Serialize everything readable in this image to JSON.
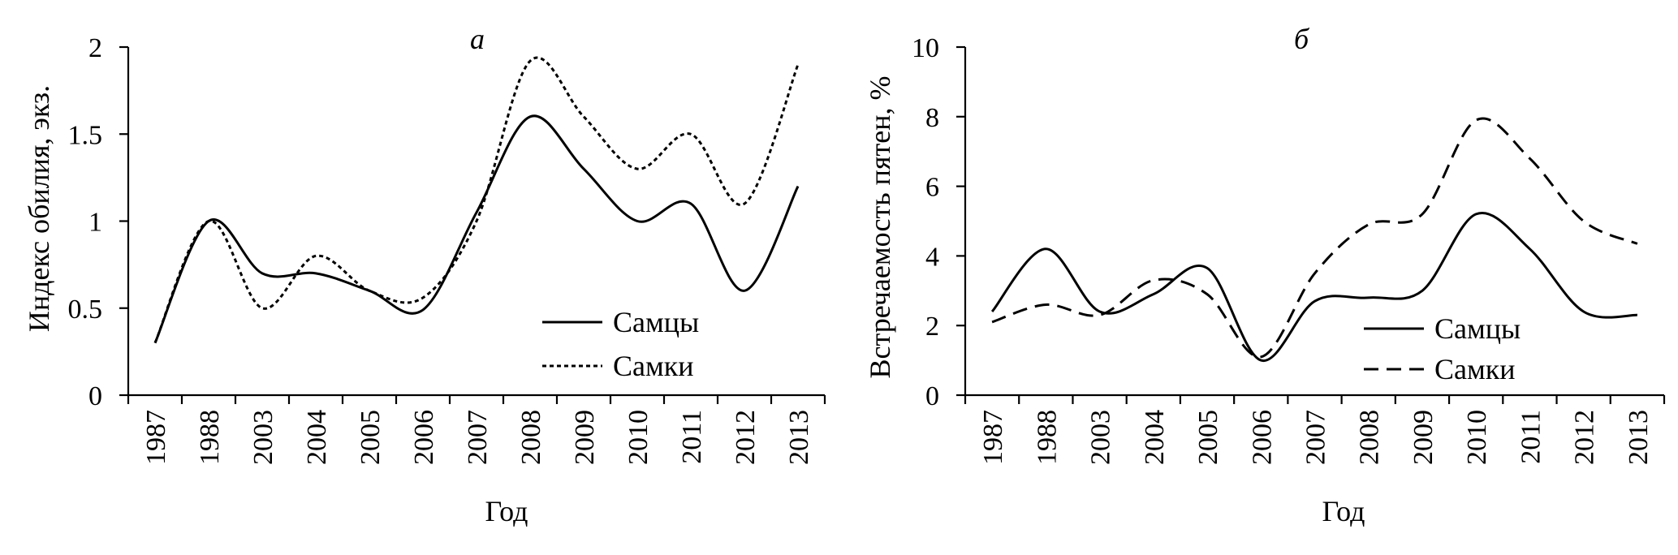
{
  "chart_data": [
    {
      "type": "line",
      "title": "а",
      "xlabel": "Год",
      "ylabel": "Индекс обилия, экз.",
      "categories": [
        "1987",
        "1988",
        "2003",
        "2004",
        "2005",
        "2006",
        "2007",
        "2008",
        "2009",
        "2010",
        "2011",
        "2012",
        "2013"
      ],
      "ylim": [
        0,
        2
      ],
      "yticks": [
        "0",
        "0.5",
        "1",
        "1.5",
        "2"
      ],
      "grid": false,
      "legend_position": "bottom-right",
      "series": [
        {
          "name": "Самцы",
          "style": "solid",
          "values": [
            0.3,
            1.0,
            0.7,
            0.7,
            0.6,
            0.49,
            1.05,
            1.6,
            1.3,
            1.0,
            1.1,
            0.6,
            1.2
          ]
        },
        {
          "name": "Самки",
          "style": "dotted",
          "values": [
            0.3,
            1.0,
            0.5,
            0.8,
            0.6,
            0.56,
            1.0,
            1.92,
            1.6,
            1.3,
            1.5,
            1.1,
            1.9
          ]
        }
      ]
    },
    {
      "type": "line",
      "title": "б",
      "xlabel": "Год",
      "ylabel": "Встречаемость пятен, %",
      "categories": [
        "1987",
        "1988",
        "2003",
        "2004",
        "2005",
        "2006",
        "2007",
        "2008",
        "2009",
        "2010",
        "2011",
        "2012",
        "2013"
      ],
      "ylim": [
        0,
        10
      ],
      "yticks": [
        "0",
        "2",
        "4",
        "6",
        "8",
        "10"
      ],
      "grid": false,
      "legend_position": "bottom-right",
      "series": [
        {
          "name": "Самцы",
          "style": "solid",
          "values": [
            2.4,
            4.2,
            2.4,
            2.9,
            3.65,
            1.0,
            2.7,
            2.8,
            3.0,
            5.2,
            4.2,
            2.4,
            2.3
          ]
        },
        {
          "name": "Самки",
          "style": "dashed",
          "values": [
            2.1,
            2.6,
            2.3,
            3.3,
            2.9,
            1.1,
            3.5,
            4.9,
            5.2,
            7.9,
            6.8,
            5.0,
            4.35
          ]
        }
      ]
    }
  ]
}
